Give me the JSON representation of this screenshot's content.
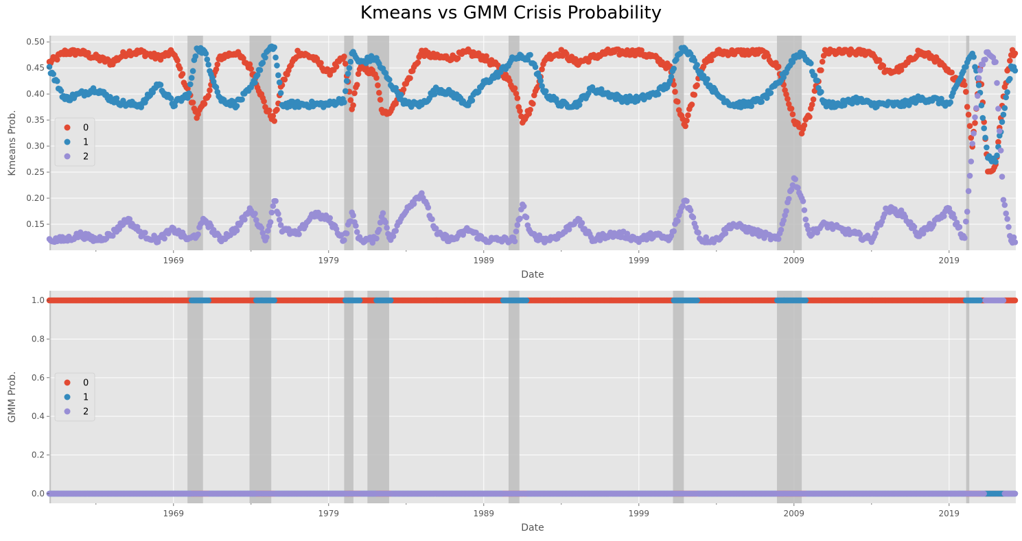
{
  "title": "Kmeans vs GMM Crisis Probability",
  "colors": {
    "series0": "#E24A33",
    "series1": "#348ABD",
    "series2": "#988ED5",
    "plot_bg": "#E5E5E5",
    "grid": "#FFFFFF",
    "recession": "#BEBEBE"
  },
  "recessions": [
    [
      1960.3,
      1961.1
    ],
    [
      1969.9,
      1970.9
    ],
    [
      1973.9,
      1975.3
    ],
    [
      1980.0,
      1980.6
    ],
    [
      1981.5,
      1982.9
    ],
    [
      1990.6,
      1991.3
    ],
    [
      2001.2,
      2001.9
    ],
    [
      2007.9,
      2009.5
    ],
    [
      2020.1,
      2020.3
    ]
  ],
  "charts": [
    {
      "xlabel": "Date",
      "ylabel": "Kmeans Prob.",
      "x_ticks": [
        "1969",
        "1979",
        "1989",
        "1999",
        "2009",
        "2019"
      ],
      "y_ticks": [
        "0.15",
        "0.20",
        "0.25",
        "0.30",
        "0.35",
        "0.40",
        "0.45",
        "0.50"
      ],
      "legend": [
        "0",
        "1",
        "2"
      ]
    },
    {
      "xlabel": "Date",
      "ylabel": "GMM Prob.",
      "x_ticks": [
        "1969",
        "1979",
        "1989",
        "1999",
        "2009",
        "2019"
      ],
      "y_ticks": [
        "0.0",
        "0.2",
        "0.4",
        "0.6",
        "0.8",
        "1.0"
      ],
      "legend": [
        "0",
        "1",
        "2"
      ]
    }
  ],
  "chart_data": [
    {
      "type": "scatter",
      "title": "Kmeans vs GMM Crisis Probability",
      "xlabel": "Date",
      "ylabel": "Kmeans Prob.",
      "xlim": [
        1961,
        2023.3
      ],
      "ylim": [
        0.1,
        0.512
      ],
      "x_ticks": [
        1969,
        1979,
        1989,
        1999,
        2009,
        2019
      ],
      "y_ticks": [
        0.15,
        0.2,
        0.25,
        0.3,
        0.35,
        0.4,
        0.45,
        0.5
      ],
      "legend": "center-left",
      "series": [
        {
          "name": "0",
          "approx_profile": [
            [
              1961,
              0.46
            ],
            [
              1962,
              0.48
            ],
            [
              1963,
              0.48
            ],
            [
              1964,
              0.47
            ],
            [
              1965,
              0.46
            ],
            [
              1966,
              0.48
            ],
            [
              1967,
              0.48
            ],
            [
              1968,
              0.47
            ],
            [
              1969,
              0.48
            ],
            [
              1970,
              0.4
            ],
            [
              1970.5,
              0.36
            ],
            [
              1971,
              0.38
            ],
            [
              1972,
              0.47
            ],
            [
              1973,
              0.48
            ],
            [
              1974,
              0.45
            ],
            [
              1975,
              0.37
            ],
            [
              1975.5,
              0.35
            ],
            [
              1976,
              0.42
            ],
            [
              1977,
              0.48
            ],
            [
              1978,
              0.47
            ],
            [
              1979,
              0.44
            ],
            [
              1980,
              0.47
            ],
            [
              1980.5,
              0.37
            ],
            [
              1981,
              0.45
            ],
            [
              1982,
              0.44
            ],
            [
              1982.5,
              0.36
            ],
            [
              1983,
              0.37
            ],
            [
              1984,
              0.42
            ],
            [
              1985,
              0.48
            ],
            [
              1986,
              0.47
            ],
            [
              1987,
              0.47
            ],
            [
              1988,
              0.48
            ],
            [
              1989,
              0.47
            ],
            [
              1990,
              0.45
            ],
            [
              1991,
              0.41
            ],
            [
              1991.5,
              0.35
            ],
            [
              1992,
              0.37
            ],
            [
              1993,
              0.47
            ],
            [
              1994,
              0.48
            ],
            [
              1995,
              0.46
            ],
            [
              1996,
              0.47
            ],
            [
              1997,
              0.48
            ],
            [
              1998,
              0.48
            ],
            [
              1999,
              0.48
            ],
            [
              2000,
              0.47
            ],
            [
              2001,
              0.45
            ],
            [
              2001.5,
              0.38
            ],
            [
              2002,
              0.34
            ],
            [
              2003,
              0.45
            ],
            [
              2004,
              0.48
            ],
            [
              2005,
              0.48
            ],
            [
              2006,
              0.48
            ],
            [
              2007,
              0.48
            ],
            [
              2008,
              0.45
            ],
            [
              2009,
              0.35
            ],
            [
              2009.5,
              0.33
            ],
            [
              2010,
              0.36
            ],
            [
              2011,
              0.48
            ],
            [
              2012,
              0.48
            ],
            [
              2013,
              0.48
            ],
            [
              2014,
              0.48
            ],
            [
              2015,
              0.44
            ],
            [
              2016,
              0.45
            ],
            [
              2017,
              0.48
            ],
            [
              2018,
              0.47
            ],
            [
              2019,
              0.44
            ],
            [
              2020,
              0.42
            ],
            [
              2020.5,
              0.3
            ],
            [
              2021,
              0.45
            ],
            [
              2021.5,
              0.25
            ],
            [
              2022,
              0.26
            ],
            [
              2022.5,
              0.4
            ],
            [
              2023,
              0.48
            ]
          ]
        },
        {
          "name": "1",
          "approx_profile": [
            [
              1961,
              0.45
            ],
            [
              1962,
              0.39
            ],
            [
              1963,
              0.4
            ],
            [
              1964,
              0.41
            ],
            [
              1965,
              0.39
            ],
            [
              1966,
              0.38
            ],
            [
              1967,
              0.38
            ],
            [
              1968,
              0.42
            ],
            [
              1969,
              0.38
            ],
            [
              1970,
              0.4
            ],
            [
              1970.5,
              0.49
            ],
            [
              1971,
              0.48
            ],
            [
              1972,
              0.39
            ],
            [
              1973,
              0.38
            ],
            [
              1974,
              0.41
            ],
            [
              1975,
              0.48
            ],
            [
              1975.5,
              0.49
            ],
            [
              1976,
              0.38
            ],
            [
              1977,
              0.38
            ],
            [
              1978,
              0.38
            ],
            [
              1979,
              0.38
            ],
            [
              1980,
              0.39
            ],
            [
              1980.5,
              0.48
            ],
            [
              1981,
              0.46
            ],
            [
              1982,
              0.47
            ],
            [
              1983,
              0.42
            ],
            [
              1984,
              0.38
            ],
            [
              1985,
              0.38
            ],
            [
              1986,
              0.41
            ],
            [
              1987,
              0.4
            ],
            [
              1988,
              0.38
            ],
            [
              1989,
              0.42
            ],
            [
              1990,
              0.44
            ],
            [
              1991,
              0.47
            ],
            [
              1992,
              0.47
            ],
            [
              1993,
              0.4
            ],
            [
              1994,
              0.38
            ],
            [
              1995,
              0.38
            ],
            [
              1996,
              0.41
            ],
            [
              1997,
              0.4
            ],
            [
              1998,
              0.39
            ],
            [
              1999,
              0.39
            ],
            [
              2000,
              0.4
            ],
            [
              2001,
              0.42
            ],
            [
              2001.5,
              0.48
            ],
            [
              2002,
              0.49
            ],
            [
              2003,
              0.44
            ],
            [
              2004,
              0.4
            ],
            [
              2005,
              0.38
            ],
            [
              2006,
              0.38
            ],
            [
              2007,
              0.39
            ],
            [
              2008,
              0.42
            ],
            [
              2009,
              0.47
            ],
            [
              2009.5,
              0.48
            ],
            [
              2010,
              0.46
            ],
            [
              2011,
              0.38
            ],
            [
              2012,
              0.38
            ],
            [
              2013,
              0.39
            ],
            [
              2014,
              0.38
            ],
            [
              2015,
              0.38
            ],
            [
              2016,
              0.38
            ],
            [
              2017,
              0.39
            ],
            [
              2018,
              0.39
            ],
            [
              2019,
              0.38
            ],
            [
              2020,
              0.45
            ],
            [
              2020.5,
              0.48
            ],
            [
              2021,
              0.4
            ],
            [
              2021.5,
              0.28
            ],
            [
              2022,
              0.27
            ],
            [
              2022.5,
              0.36
            ],
            [
              2023,
              0.45
            ]
          ]
        },
        {
          "name": "2",
          "approx_profile": [
            [
              1961,
              0.12
            ],
            [
              1962,
              0.12
            ],
            [
              1963,
              0.13
            ],
            [
              1964,
              0.12
            ],
            [
              1965,
              0.13
            ],
            [
              1966,
              0.16
            ],
            [
              1967,
              0.13
            ],
            [
              1968,
              0.12
            ],
            [
              1969,
              0.14
            ],
            [
              1970,
              0.12
            ],
            [
              1970.5,
              0.13
            ],
            [
              1971,
              0.16
            ],
            [
              1972,
              0.12
            ],
            [
              1973,
              0.14
            ],
            [
              1974,
              0.18
            ],
            [
              1975,
              0.12
            ],
            [
              1975.5,
              0.2
            ],
            [
              1976,
              0.14
            ],
            [
              1977,
              0.13
            ],
            [
              1978,
              0.17
            ],
            [
              1979,
              0.16
            ],
            [
              1980,
              0.12
            ],
            [
              1980.5,
              0.17
            ],
            [
              1981,
              0.12
            ],
            [
              1982,
              0.12
            ],
            [
              1982.5,
              0.17
            ],
            [
              1983,
              0.12
            ],
            [
              1984,
              0.18
            ],
            [
              1985,
              0.21
            ],
            [
              1986,
              0.13
            ],
            [
              1987,
              0.12
            ],
            [
              1988,
              0.14
            ],
            [
              1989,
              0.12
            ],
            [
              1990,
              0.12
            ],
            [
              1991,
              0.12
            ],
            [
              1991.5,
              0.19
            ],
            [
              1992,
              0.13
            ],
            [
              1993,
              0.12
            ],
            [
              1994,
              0.13
            ],
            [
              1995,
              0.16
            ],
            [
              1996,
              0.12
            ],
            [
              1997,
              0.13
            ],
            [
              1998,
              0.13
            ],
            [
              1999,
              0.12
            ],
            [
              2000,
              0.13
            ],
            [
              2001,
              0.12
            ],
            [
              2002,
              0.2
            ],
            [
              2003,
              0.12
            ],
            [
              2004,
              0.12
            ],
            [
              2005,
              0.15
            ],
            [
              2006,
              0.14
            ],
            [
              2007,
              0.13
            ],
            [
              2008,
              0.12
            ],
            [
              2009,
              0.24
            ],
            [
              2009.5,
              0.2
            ],
            [
              2010,
              0.13
            ],
            [
              2011,
              0.15
            ],
            [
              2012,
              0.14
            ],
            [
              2013,
              0.13
            ],
            [
              2014,
              0.12
            ],
            [
              2015,
              0.18
            ],
            [
              2016,
              0.17
            ],
            [
              2017,
              0.13
            ],
            [
              2018,
              0.15
            ],
            [
              2019,
              0.18
            ],
            [
              2020,
              0.12
            ],
            [
              2020.5,
              0.3
            ],
            [
              2021,
              0.45
            ],
            [
              2021.5,
              0.48
            ],
            [
              2022,
              0.46
            ],
            [
              2022.5,
              0.2
            ],
            [
              2023,
              0.12
            ]
          ]
        }
      ]
    },
    {
      "type": "scatter",
      "xlabel": "Date",
      "ylabel": "GMM Prob.",
      "xlim": [
        1961,
        2023.3
      ],
      "ylim": [
        -0.05,
        1.05
      ],
      "x_ticks": [
        1969,
        1979,
        1989,
        1999,
        2009,
        2019
      ],
      "y_ticks": [
        0.0,
        0.2,
        0.4,
        0.6,
        0.8,
        1.0
      ],
      "legend": "center-left",
      "series": [
        {
          "name": "0",
          "value_at_1": "all dates except crisis periods",
          "value_at_0": "crisis periods"
        },
        {
          "name": "1",
          "value_at_1": [
            [
              1970.1,
              1971.3
            ],
            [
              1974.3,
              1975.5
            ],
            [
              1980.0,
              1981.0
            ],
            [
              1982.0,
              1983.0
            ],
            [
              1990.2,
              1991.8
            ],
            [
              2001.2,
              2002.8
            ],
            [
              2007.9,
              2009.8
            ],
            [
              2020.0,
              2021.0
            ]
          ],
          "value_at_0": [
            [
              2021.5,
              2022.3
            ]
          ]
        },
        {
          "name": "2",
          "value_at_1": [
            [
              2021.3,
              2022.5
            ]
          ],
          "value_at_0": "all other dates"
        }
      ]
    }
  ]
}
